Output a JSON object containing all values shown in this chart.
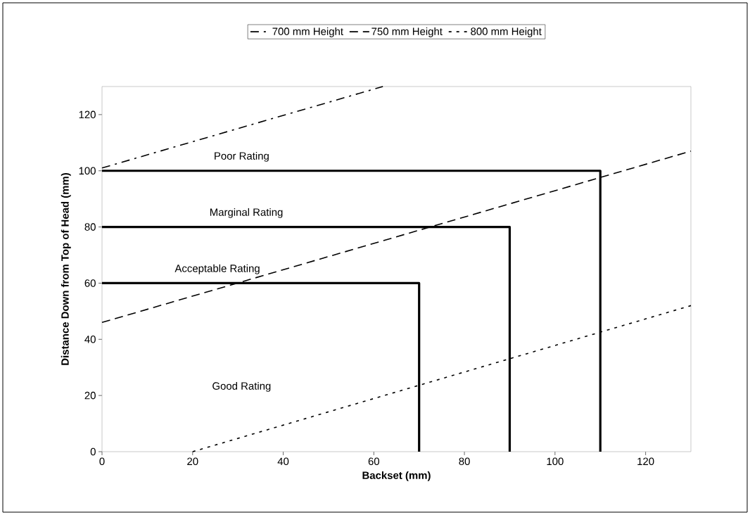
{
  "chart_data": {
    "type": "line",
    "xlabel": "Backset (mm)",
    "ylabel": "Distance Down from Top of Head (mm)",
    "xlim": [
      0,
      130
    ],
    "ylim": [
      0,
      130
    ],
    "xticks": [
      0,
      20,
      40,
      60,
      80,
      100,
      120
    ],
    "yticks": [
      0,
      20,
      40,
      60,
      80,
      100,
      120
    ],
    "grid": false,
    "legend": "top",
    "marker": "none",
    "series": [
      {
        "color": "#000000",
        "line_style": "solid",
        "x": [
          0,
          70,
          70
        ],
        "values": [
          60,
          60,
          0
        ]
      },
      {
        "color": "#000000",
        "line_style": "solid",
        "x": [
          0,
          90,
          90
        ],
        "values": [
          80,
          80,
          0
        ]
      },
      {
        "color": "#000000",
        "line_style": "solid",
        "x": [
          0,
          110,
          110
        ],
        "values": [
          100,
          100,
          0
        ]
      },
      {
        "name": "700 mm Height",
        "color": "#000000",
        "line_style": "dashdot",
        "x": [
          0,
          62
        ],
        "values": [
          101,
          130
        ]
      },
      {
        "name": "750 mm Height",
        "color": "#000000",
        "line_style": "dashed",
        "x": [
          0,
          130
        ],
        "values": [
          46,
          107
        ]
      },
      {
        "name": "800 mm Height",
        "color": "#000000",
        "line_style": "dotted",
        "x": [
          20,
          130
        ],
        "values": [
          0,
          52
        ]
      }
    ],
    "annotations": [
      "Poor Rating",
      "Marginal Rating",
      "Acceptable Rating",
      "Good Rating"
    ]
  }
}
